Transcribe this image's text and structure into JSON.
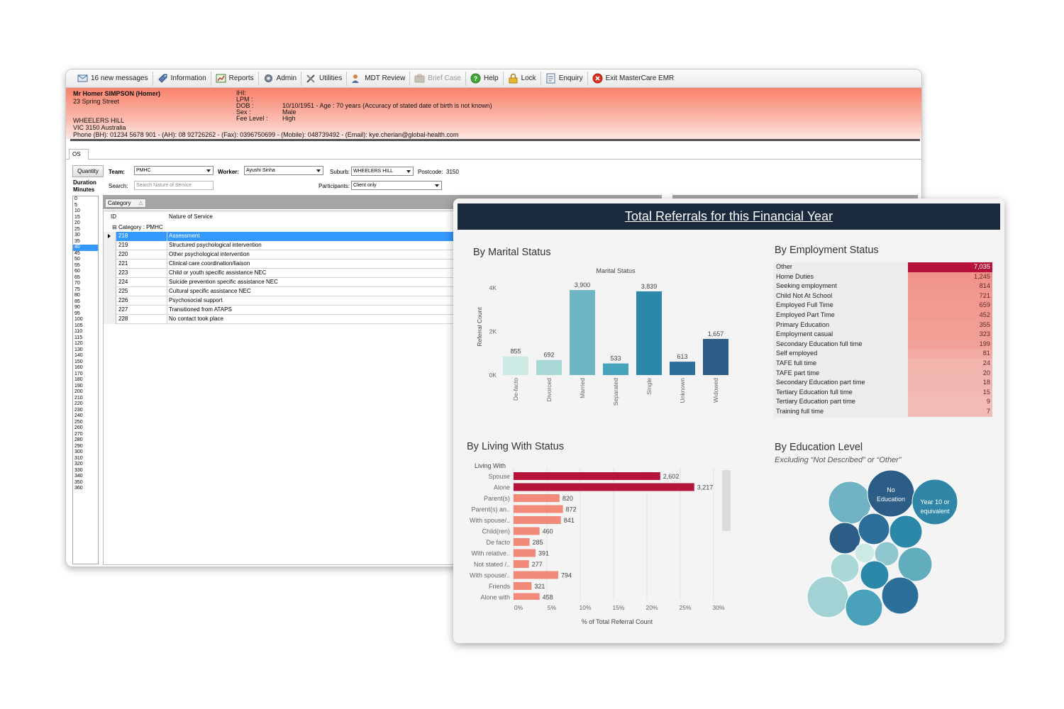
{
  "emr": {
    "toolbar": [
      {
        "name": "messages-button",
        "icon": "envelope-icon",
        "label": "16 new messages",
        "enabled": true
      },
      {
        "name": "information-button",
        "icon": "info-tag-icon",
        "label": "Information",
        "enabled": true
      },
      {
        "name": "reports-button",
        "icon": "chart-report-icon",
        "label": "Reports",
        "enabled": true
      },
      {
        "name": "admin-button",
        "icon": "gear-icon",
        "label": "Admin",
        "enabled": true
      },
      {
        "name": "utilities-button",
        "icon": "tools-icon",
        "label": "Utilities",
        "enabled": true
      },
      {
        "name": "mdt-review-button",
        "icon": "users-icon",
        "label": "MDT Review",
        "enabled": true
      },
      {
        "name": "brief-case-button",
        "icon": "briefcase-icon",
        "label": "Brief Case",
        "enabled": false
      },
      {
        "name": "help-button",
        "icon": "help-icon",
        "label": "Help",
        "enabled": true
      },
      {
        "name": "lock-button",
        "icon": "lock-icon",
        "label": "Lock",
        "enabled": true
      },
      {
        "name": "enquiry-button",
        "icon": "document-icon",
        "label": "Enquiry",
        "enabled": true
      },
      {
        "name": "exit-button",
        "icon": "close-circle-icon",
        "label": "Exit MasterCare EMR",
        "enabled": true
      }
    ],
    "patient": {
      "name": "Mr Homer SIMPSON (Homer)",
      "street": "23 Spring Street",
      "suburb": "WHEELERS HILL",
      "state": "VIC 3150 Australia",
      "phone": "Phone (BH): 01234 5678 901 - (AH): 08 92726262 - (Fax): 0396750699 - (Mobile): 048739492 - (Email): kye.cherian@global-health.com",
      "fields": [
        {
          "label": "IHI:",
          "value": ""
        },
        {
          "label": "LPM :",
          "value": ""
        },
        {
          "label": "DOB :",
          "value": "10/10/1951 - Age : 70 years (Accuracy of stated date of birth is not known)"
        },
        {
          "label": "Sex :",
          "value": "Male"
        },
        {
          "label": "Fee Level :",
          "value": "High"
        }
      ]
    },
    "tab_label": "OS",
    "quantity_label": "Quantity",
    "duration_label_1": "Duration",
    "duration_label_2": "Minutes",
    "durations": [
      "0",
      "5",
      "10",
      "15",
      "20",
      "25",
      "30",
      "35",
      "40",
      "45",
      "50",
      "55",
      "60",
      "65",
      "70",
      "75",
      "80",
      "85",
      "90",
      "95",
      "100",
      "105",
      "110",
      "115",
      "120",
      "130",
      "140",
      "150",
      "160",
      "170",
      "180",
      "190",
      "200",
      "210",
      "220",
      "230",
      "240",
      "250",
      "260",
      "270",
      "280",
      "290",
      "300",
      "310",
      "320",
      "330",
      "340",
      "350",
      "360"
    ],
    "duration_selected": "40",
    "filters": {
      "team_label": "Team:",
      "team_value": "PMHC",
      "worker_label": "Worker:",
      "worker_value": "Ayushi Sinha",
      "suburb_label": "Suburb:",
      "suburb_value": "WHEELERS HILL",
      "postcode_label": "Postcode:",
      "postcode_value": "3150",
      "search_label": "Search:",
      "search_placeholder": "Search Nature of Service",
      "participants_label": "Participants:",
      "participants_value": "Client only"
    },
    "grid": {
      "group_chip": "Category",
      "col_id": "ID",
      "col_nature": "Nature of Service",
      "group_row": "Category : PMHC",
      "rows": [
        {
          "id": "218",
          "nature": "Assessment"
        },
        {
          "id": "219",
          "nature": "Structured psychological intervention"
        },
        {
          "id": "220",
          "nature": "Other psychological intervention"
        },
        {
          "id": "221",
          "nature": "Clinical care coordination/liaison"
        },
        {
          "id": "223",
          "nature": "Child or youth specific assistance NEC"
        },
        {
          "id": "224",
          "nature": "Suicide prevention specific assistance NEC"
        },
        {
          "id": "225",
          "nature": "Cultural specific assistance NEC"
        },
        {
          "id": "226",
          "nature": "Psychosocial support"
        },
        {
          "id": "227",
          "nature": "Transitioned from ATAPS"
        },
        {
          "id": "228",
          "nature": "No contact took place"
        }
      ],
      "selected_id": "218"
    }
  },
  "dashboard": {
    "title": "Total Referrals for this Financial Year",
    "marital_title": "By Marital Status",
    "employment_title": "By Employment Status",
    "living_title": "By Living With Status",
    "education_title": "By Education Level",
    "education_subtitle": "Excluding “Not Described” or “Other”",
    "employment": [
      {
        "label": "Other",
        "value": "7,035",
        "n": 7035
      },
      {
        "label": "Home Duties",
        "value": "1,245",
        "n": 1245
      },
      {
        "label": "Seeking employment",
        "value": "814",
        "n": 814
      },
      {
        "label": "Child Not At School",
        "value": "721",
        "n": 721
      },
      {
        "label": "Employed Full Time",
        "value": "659",
        "n": 659
      },
      {
        "label": "Employed Part Time",
        "value": "452",
        "n": 452
      },
      {
        "label": "Primary Education",
        "value": "355",
        "n": 355
      },
      {
        "label": "Employment casual",
        "value": "323",
        "n": 323
      },
      {
        "label": "Secondary Education full time",
        "value": "199",
        "n": 199
      },
      {
        "label": "Self employed",
        "value": "81",
        "n": 81
      },
      {
        "label": "TAFE full time",
        "value": "24",
        "n": 24
      },
      {
        "label": "TAFE part time",
        "value": "20",
        "n": 20
      },
      {
        "label": "Secondary Education part time",
        "value": "18",
        "n": 18
      },
      {
        "label": "Tertiary Education full time",
        "value": "15",
        "n": 15
      },
      {
        "label": "Tertiary Education part time",
        "value": "9",
        "n": 9
      },
      {
        "label": "Training full time",
        "value": "7",
        "n": 7
      }
    ],
    "education_bubbles": [
      {
        "label_1": "No",
        "label_2": "Education"
      },
      {
        "label_1": "Year 10 or",
        "label_2": "equivalent"
      }
    ],
    "colors": {
      "header": "#1b2a3c",
      "accent_red": "#b5133a",
      "salmon": "#f28a7a",
      "teal_light": "#a9d8d6",
      "teal_dark": "#2b5d86"
    }
  },
  "chart_data": [
    {
      "type": "bar",
      "title": "Marital Status",
      "ylabel": "Referral Count",
      "xlabel": "",
      "categories": [
        "De-facto",
        "Divorced",
        "Married",
        "Separated",
        "Single",
        "Unknown",
        "Widowed"
      ],
      "values": [
        855,
        692,
        3900,
        533,
        3839,
        613,
        1657
      ],
      "value_labels": [
        "855",
        "692",
        "3,900",
        "533",
        "3,839",
        "613",
        "1,657"
      ],
      "colors": [
        "#cde9e3",
        "#a9d8d6",
        "#6fb6c4",
        "#45a3bb",
        "#2c88a9",
        "#2b6f9a",
        "#2b5d86"
      ],
      "ylim": [
        0,
        4500
      ],
      "yticks": [
        0,
        2000,
        4000
      ],
      "ytick_labels": [
        "0K",
        "2K",
        "4K"
      ]
    },
    {
      "type": "bar",
      "orientation": "horizontal",
      "title": "Living With",
      "xlabel": "% of Total Referral Count",
      "categories": [
        "Spouse",
        "Alone",
        "Parent(s)",
        "Parent(s) an..",
        "With spouse/..",
        "Child(ren)",
        "De facto",
        "With relative..",
        "Not stated /..",
        "With spouse/..",
        "Friends",
        "Alone with"
      ],
      "values": [
        2602,
        3217,
        820,
        872,
        841,
        460,
        285,
        391,
        277,
        794,
        321,
        458
      ],
      "value_labels": [
        "2,602",
        "3,217",
        "820",
        "872",
        "841",
        "460",
        "285",
        "391",
        "277",
        "794",
        "321",
        "458"
      ],
      "percent_of_total": [
        22.0,
        27.1,
        6.9,
        7.4,
        7.1,
        3.9,
        2.4,
        3.3,
        2.3,
        6.7,
        2.7,
        3.9
      ],
      "xticks": [
        0,
        5,
        10,
        15,
        20,
        25,
        30
      ],
      "xtick_labels": [
        "0%",
        "5%",
        "10%",
        "15%",
        "20%",
        "25%",
        "30%"
      ],
      "xlim": [
        0,
        31
      ]
    }
  ]
}
